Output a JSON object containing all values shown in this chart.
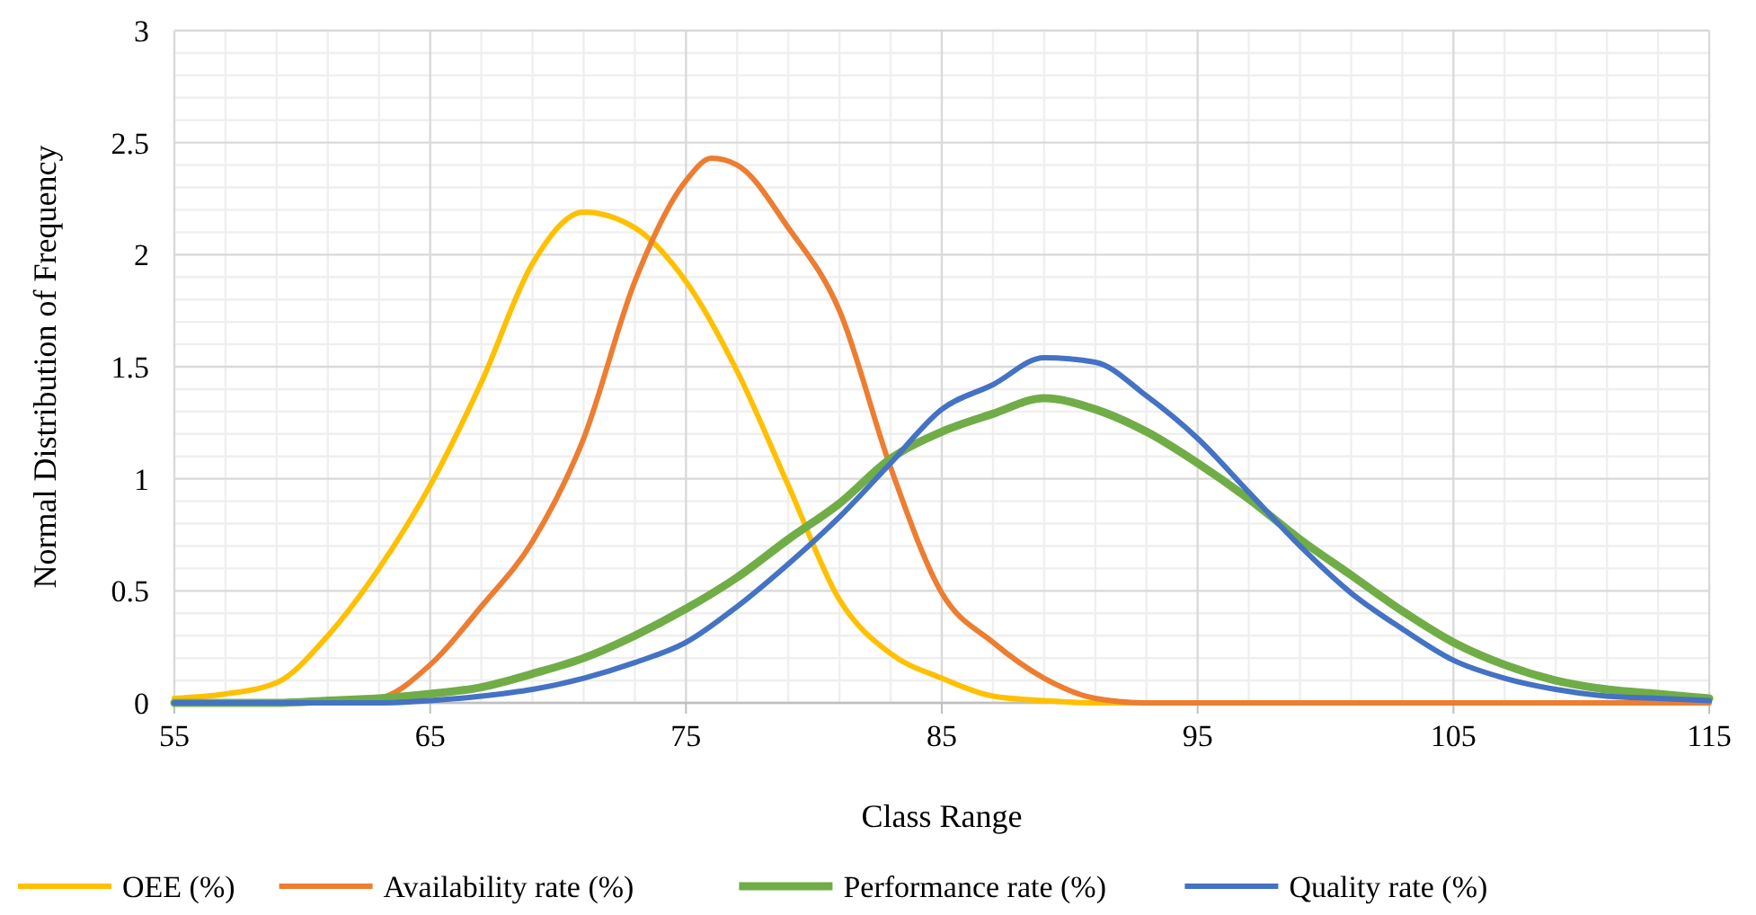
{
  "chart_data": {
    "type": "line",
    "xlabel": "Class Range",
    "ylabel": "Normal Distribution of Frequency",
    "x": [
      55,
      57,
      59,
      61,
      63,
      65,
      67,
      69,
      71,
      73,
      75,
      77,
      79,
      81,
      83,
      85,
      87,
      89,
      91,
      93,
      95,
      97,
      99,
      101,
      103,
      105,
      107,
      109,
      111,
      113,
      115
    ],
    "series": [
      {
        "name": "OEE (%)",
        "color": "#ffc000",
        "values": [
          0.02,
          0.04,
          0.09,
          0.3,
          0.6,
          0.97,
          1.43,
          1.96,
          2.19,
          2.12,
          1.88,
          1.48,
          0.97,
          0.46,
          0.22,
          0.11,
          0.03,
          0.01,
          0,
          0,
          0,
          null,
          null,
          null,
          null,
          null,
          null,
          null,
          null,
          null,
          null
        ]
      },
      {
        "name": "Availability rate (%)",
        "color": "#ed7d31",
        "x": [
          61,
          63,
          65,
          67,
          69,
          71,
          73,
          75,
          76,
          77,
          79,
          81,
          83,
          85,
          87,
          89,
          91,
          93,
          95,
          97,
          99,
          101,
          103,
          105,
          107,
          109,
          111,
          113,
          115
        ],
        "values": [
          0,
          0.02,
          0.17,
          0.43,
          0.72,
          1.18,
          1.88,
          2.33,
          2.43,
          2.4,
          2.12,
          1.75,
          1.05,
          0.49,
          0.27,
          0.11,
          0.02,
          0,
          0,
          0,
          0,
          0,
          0,
          0,
          0,
          0,
          0,
          0,
          0
        ]
      },
      {
        "name": "Performance rate (%)",
        "color": "#70ad47",
        "values": [
          0,
          0,
          0,
          0.01,
          0.02,
          0.04,
          0.07,
          0.13,
          0.2,
          0.3,
          0.42,
          0.56,
          0.73,
          0.89,
          1.09,
          1.21,
          1.29,
          1.36,
          1.31,
          1.21,
          1.07,
          0.91,
          0.73,
          0.57,
          0.41,
          0.27,
          0.17,
          0.1,
          0.06,
          0.04,
          0.02
        ]
      },
      {
        "name": "Quality rate (%)",
        "color": "#4472c4",
        "values": [
          0,
          0,
          0,
          0,
          0,
          0.01,
          0.03,
          0.06,
          0.11,
          0.18,
          0.27,
          0.43,
          0.62,
          0.83,
          1.07,
          1.31,
          1.42,
          1.54,
          1.52,
          1.37,
          1.18,
          0.94,
          0.7,
          0.49,
          0.33,
          0.19,
          0.11,
          0.06,
          0.03,
          0.02,
          0.01
        ]
      }
    ],
    "xlim": [
      55,
      115
    ],
    "xticks": [
      55,
      65,
      75,
      85,
      95,
      105,
      115
    ],
    "ylim": [
      0,
      3
    ],
    "yticks": [
      0,
      {
        "value": 0.5,
        "label": "0.5"
      },
      1,
      {
        "value": 1.5,
        "label": "1.5"
      },
      2,
      {
        "value": 2.5,
        "label": "2.5"
      },
      3
    ],
    "grid": true,
    "legend": "bottom",
    "marker": "none",
    "line_style": "solid"
  }
}
